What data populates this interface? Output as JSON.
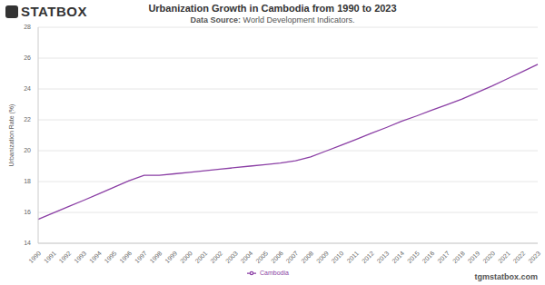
{
  "chart_data": {
    "type": "line",
    "logo": "STATBOX",
    "title": "Urbanization Growth in Cambodia from 1990 to 2023",
    "subtitle": "Data Source: World Development Indicators.",
    "y_label": "Urbanization Rate (%)",
    "footer": "tgmstatbox.com",
    "categories": [
      "1990",
      "1991",
      "1992",
      "1993",
      "1994",
      "1995",
      "1996",
      "1997",
      "1998",
      "1999",
      "2000",
      "2001",
      "2002",
      "2003",
      "2004",
      "2005",
      "2006",
      "2007",
      "2008",
      "2009",
      "2010",
      "2011",
      "2012",
      "2013",
      "2014",
      "2015",
      "2016",
      "2017",
      "2018",
      "2019",
      "2020",
      "2021",
      "2022",
      "2023"
    ],
    "series": [
      {
        "name": "Cambodia",
        "color": "#8b3fa5",
        "values": [
          15.55,
          15.96,
          16.37,
          16.78,
          17.2,
          17.62,
          18.05,
          18.4,
          18.4,
          18.5,
          18.6,
          18.7,
          18.8,
          18.9,
          19.0,
          19.1,
          19.2,
          19.35,
          19.6,
          19.97,
          20.35,
          20.73,
          21.12,
          21.5,
          21.9,
          22.25,
          22.62,
          22.98,
          23.35,
          23.77,
          24.2,
          24.66,
          25.12,
          25.6
        ]
      }
    ],
    "ylim": [
      14,
      28
    ],
    "yticks": [
      14,
      16,
      18,
      20,
      22,
      24,
      26,
      28
    ],
    "grid": true,
    "legend": "bottom"
  }
}
